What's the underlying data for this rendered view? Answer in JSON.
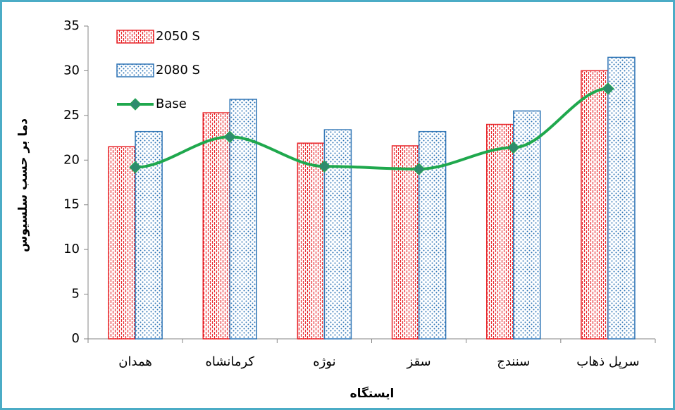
{
  "chart_data": {
    "type": "bar",
    "y_label": "دما بر حسب سلسیوس",
    "x_label": "ایستگاه",
    "categories": [
      "همدان",
      "کرمانشاه",
      "نوژه",
      "سقز",
      "سنندج",
      "سرپل ذهاب"
    ],
    "series": [
      {
        "name": "2050 S",
        "type": "bar",
        "color": "#e8262b",
        "values": [
          21.5,
          25.3,
          21.9,
          21.6,
          24.0,
          30.0
        ]
      },
      {
        "name": "2080 S",
        "type": "bar",
        "color": "#2e74b5",
        "values": [
          23.2,
          26.8,
          23.4,
          23.2,
          25.5,
          31.5
        ]
      },
      {
        "name": "Base",
        "type": "line",
        "color": "#1fa84d",
        "values": [
          19.2,
          22.6,
          19.3,
          19.0,
          21.4,
          28.0
        ]
      }
    ],
    "ylim": [
      0,
      35
    ],
    "yticks": [
      0,
      5,
      10,
      15,
      20,
      25,
      30,
      35
    ],
    "grid": false,
    "legend": "top-left"
  }
}
